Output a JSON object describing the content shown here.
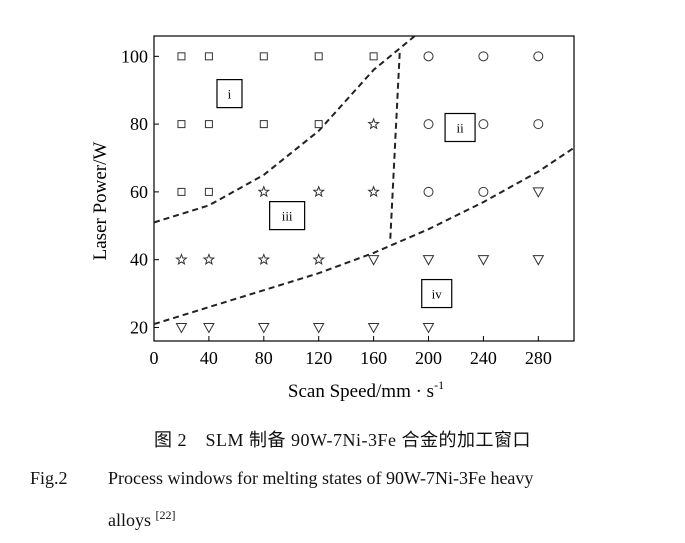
{
  "chart_data": {
    "type": "scatter",
    "xlabel_main": "Scan  Speed/mm · s",
    "xlabel_sup": "-1",
    "ylabel": "Laser Power/W",
    "xlim": [
      0,
      306
    ],
    "ylim": [
      16,
      106
    ],
    "xticks": [
      "0",
      "40",
      "80",
      "120",
      "160",
      "200",
      "240",
      "280"
    ],
    "yticks": [
      "20",
      "40",
      "60",
      "80",
      "100"
    ],
    "series": [
      {
        "marker": "square",
        "points": [
          [
            20,
            100
          ],
          [
            40,
            100
          ],
          [
            80,
            100
          ],
          [
            120,
            100
          ],
          [
            160,
            100
          ],
          [
            20,
            80
          ],
          [
            40,
            80
          ],
          [
            80,
            80
          ],
          [
            120,
            80
          ],
          [
            20,
            60
          ],
          [
            40,
            60
          ]
        ]
      },
      {
        "marker": "circle",
        "points": [
          [
            200,
            100
          ],
          [
            240,
            100
          ],
          [
            280,
            100
          ],
          [
            200,
            80
          ],
          [
            240,
            80
          ],
          [
            280,
            80
          ],
          [
            200,
            60
          ],
          [
            240,
            60
          ]
        ]
      },
      {
        "marker": "star",
        "points": [
          [
            160,
            80
          ],
          [
            80,
            60
          ],
          [
            120,
            60
          ],
          [
            160,
            60
          ],
          [
            20,
            40
          ],
          [
            40,
            40
          ],
          [
            80,
            40
          ],
          [
            120,
            40
          ]
        ]
      },
      {
        "marker": "triangle-down",
        "points": [
          [
            280,
            60
          ],
          [
            160,
            40
          ],
          [
            200,
            40
          ],
          [
            240,
            40
          ],
          [
            280,
            40
          ],
          [
            20,
            20
          ],
          [
            40,
            20
          ],
          [
            80,
            20
          ],
          [
            120,
            20
          ],
          [
            160,
            20
          ],
          [
            200,
            20
          ]
        ]
      }
    ],
    "boundaries": [
      [
        [
          0,
          51
        ],
        [
          40,
          56
        ],
        [
          80,
          65
        ],
        [
          120,
          78
        ],
        [
          160,
          96
        ],
        [
          190,
          106
        ]
      ],
      [
        [
          179,
          101
        ],
        [
          172,
          45
        ]
      ],
      [
        [
          0,
          21
        ],
        [
          40,
          26
        ],
        [
          80,
          31
        ],
        [
          120,
          36
        ],
        [
          160,
          42
        ],
        [
          200,
          49
        ],
        [
          240,
          57
        ],
        [
          280,
          66
        ],
        [
          306,
          73
        ]
      ]
    ],
    "regions": [
      {
        "label": "i",
        "x": 55,
        "y": 89
      },
      {
        "label": "ii",
        "x": 223,
        "y": 79
      },
      {
        "label": "iii",
        "x": 97,
        "y": 53
      },
      {
        "label": "iv",
        "x": 206,
        "y": 30
      }
    ]
  },
  "caption": {
    "cn": "图 2　SLM 制备 90W-7Ni-3Fe 合金的加工窗口",
    "en_fig": "Fig.2",
    "en_line1": "Process windows for melting states of 90W-7Ni-3Fe heavy",
    "en_line2": "alloys",
    "en_ref": "[22]"
  }
}
